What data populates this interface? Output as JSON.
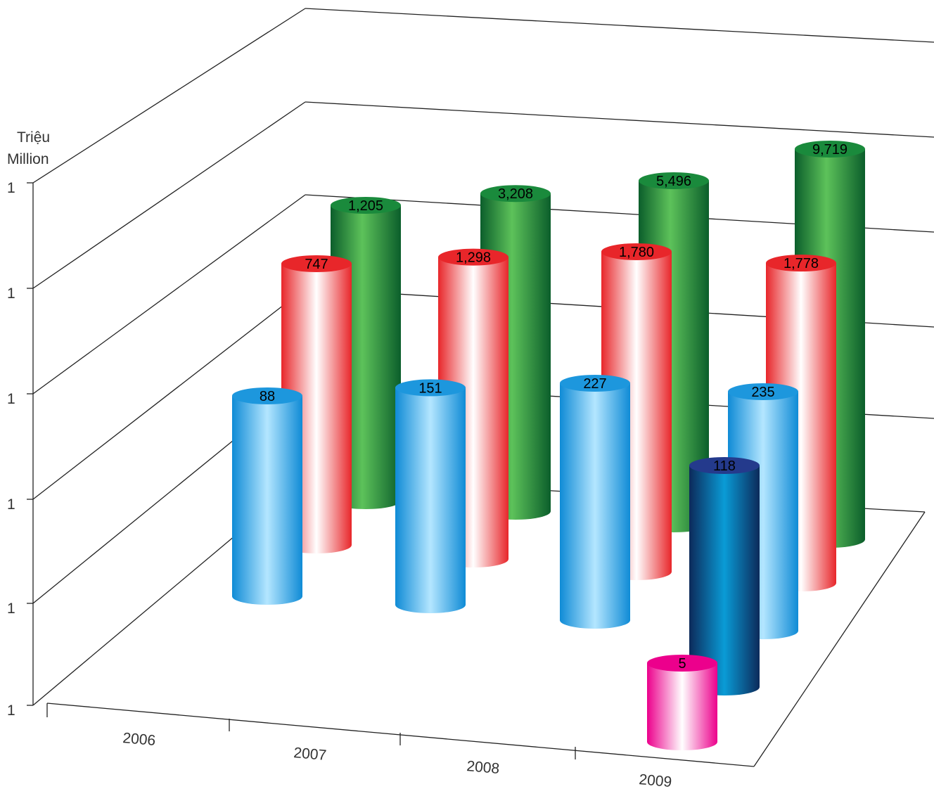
{
  "chart_data": {
    "type": "bar",
    "style": "3d-cylinder",
    "ylabel": [
      "Triệu",
      "Million"
    ],
    "y_tick_labels": [
      "1",
      "1",
      "1",
      "1",
      "1",
      "1"
    ],
    "categories": [
      "2006",
      "2007",
      "2008",
      "2009"
    ],
    "grid": true,
    "series": [
      {
        "color": "#1a8a3c",
        "values": [
          1205,
          3208,
          5496,
          9719
        ],
        "labels": [
          "1,205",
          "3,208",
          "5,496",
          "9,719"
        ]
      },
      {
        "color": "#e8262a",
        "values": [
          747,
          1298,
          1780,
          1778
        ],
        "labels": [
          "747",
          "1,298",
          "1,780",
          "1,778"
        ]
      },
      {
        "color": "#1d97dd",
        "values": [
          88,
          151,
          227,
          235
        ],
        "labels": [
          "88",
          "151",
          "227",
          "235"
        ]
      },
      {
        "color": "#123f7a",
        "values": [
          null,
          null,
          null,
          118
        ],
        "labels": [
          "",
          "",
          "",
          "118"
        ]
      },
      {
        "color": "#ec008c",
        "values": [
          null,
          null,
          null,
          5
        ],
        "labels": [
          "",
          "",
          "",
          "5"
        ]
      }
    ]
  }
}
